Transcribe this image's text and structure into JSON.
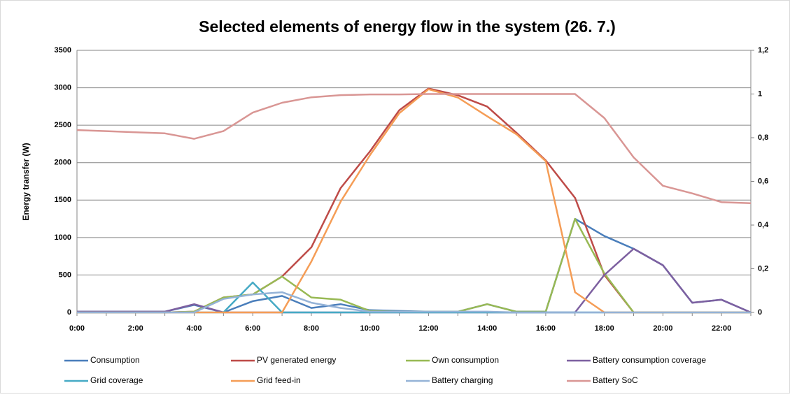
{
  "chart_data": {
    "type": "line",
    "title": "Selected elements of energy flow in the system (26. 7.)",
    "y_label": "Energy transfer (W)",
    "categories": [
      "0:00",
      null,
      "2:00",
      null,
      "4:00",
      null,
      "6:00",
      null,
      "8:00",
      null,
      "10:00",
      null,
      "12:00",
      null,
      "14:00",
      null,
      "16:00",
      null,
      "18:00",
      null,
      "20:00",
      null,
      "22:00",
      null
    ],
    "ylim": [
      0,
      3500
    ],
    "yticks": [
      0,
      500,
      1000,
      1500,
      2000,
      2500,
      3000,
      3500
    ],
    "y2lim": [
      0,
      1.2
    ],
    "y2ticks": [
      0,
      {
        "value": 0.2,
        "label": "0,2"
      },
      {
        "value": 0.4,
        "label": "0,4"
      },
      {
        "value": 0.6,
        "label": "0,6"
      },
      {
        "value": 0.8,
        "label": "0,8"
      },
      1,
      {
        "value": 1.2,
        "label": "1,2"
      }
    ],
    "grid": true,
    "series": [
      {
        "name": "Consumption",
        "color": "#4a7ebb",
        "values": [
          10,
          10,
          10,
          10,
          100,
          0,
          150,
          220,
          60,
          110,
          30,
          20,
          10,
          10,
          110,
          10,
          10,
          1250,
          1020,
          850,
          630,
          130,
          170,
          0
        ]
      },
      {
        "name": "PV generated energy",
        "color": "#be4b48",
        "values": [
          0,
          0,
          0,
          0,
          10,
          200,
          240,
          480,
          870,
          1660,
          2150,
          2700,
          2990,
          2900,
          2750,
          2400,
          2030,
          1530,
          500,
          0,
          0,
          0,
          0,
          0
        ]
      },
      {
        "name": "Own consumption",
        "color": "#98b954",
        "values": [
          0,
          0,
          0,
          0,
          10,
          200,
          240,
          480,
          200,
          170,
          20,
          10,
          10,
          10,
          110,
          10,
          10,
          1250,
          520,
          0,
          0,
          0,
          0,
          0
        ]
      },
      {
        "name": "Battery consumption coverage",
        "color": "#7d60a0",
        "values": [
          10,
          10,
          10,
          10,
          110,
          0,
          0,
          0,
          0,
          0,
          0,
          0,
          0,
          0,
          0,
          0,
          0,
          0,
          500,
          850,
          630,
          130,
          170,
          0
        ]
      },
      {
        "name": "Grid coverage",
        "color": "#46aac5",
        "values": [
          0,
          0,
          0,
          0,
          0,
          0,
          400,
          0,
          0,
          0,
          0,
          0,
          0,
          0,
          0,
          0,
          0,
          0,
          0,
          0,
          0,
          0,
          0,
          0
        ]
      },
      {
        "name": "Grid feed-in",
        "color": "#f59d56",
        "values": [
          0,
          0,
          0,
          0,
          0,
          0,
          0,
          0,
          680,
          1480,
          2100,
          2660,
          2980,
          2870,
          2620,
          2380,
          2020,
          270,
          0,
          0,
          0,
          0,
          0,
          0
        ]
      },
      {
        "name": "Battery charging",
        "color": "#95b3d7",
        "values": [
          0,
          0,
          0,
          0,
          0,
          180,
          240,
          270,
          130,
          60,
          10,
          10,
          10,
          10,
          10,
          0,
          0,
          0,
          0,
          0,
          0,
          0,
          0,
          0
        ]
      },
      {
        "name": "Battery SoC",
        "color": "#d99694",
        "axis": "y2",
        "values": [
          0.835,
          0.83,
          0.825,
          0.82,
          0.795,
          0.83,
          0.915,
          0.96,
          0.985,
          0.995,
          0.998,
          0.998,
          1,
          1,
          1,
          1,
          1,
          1,
          0.89,
          0.71,
          0.58,
          0.545,
          0.505,
          0.5
        ]
      }
    ]
  }
}
